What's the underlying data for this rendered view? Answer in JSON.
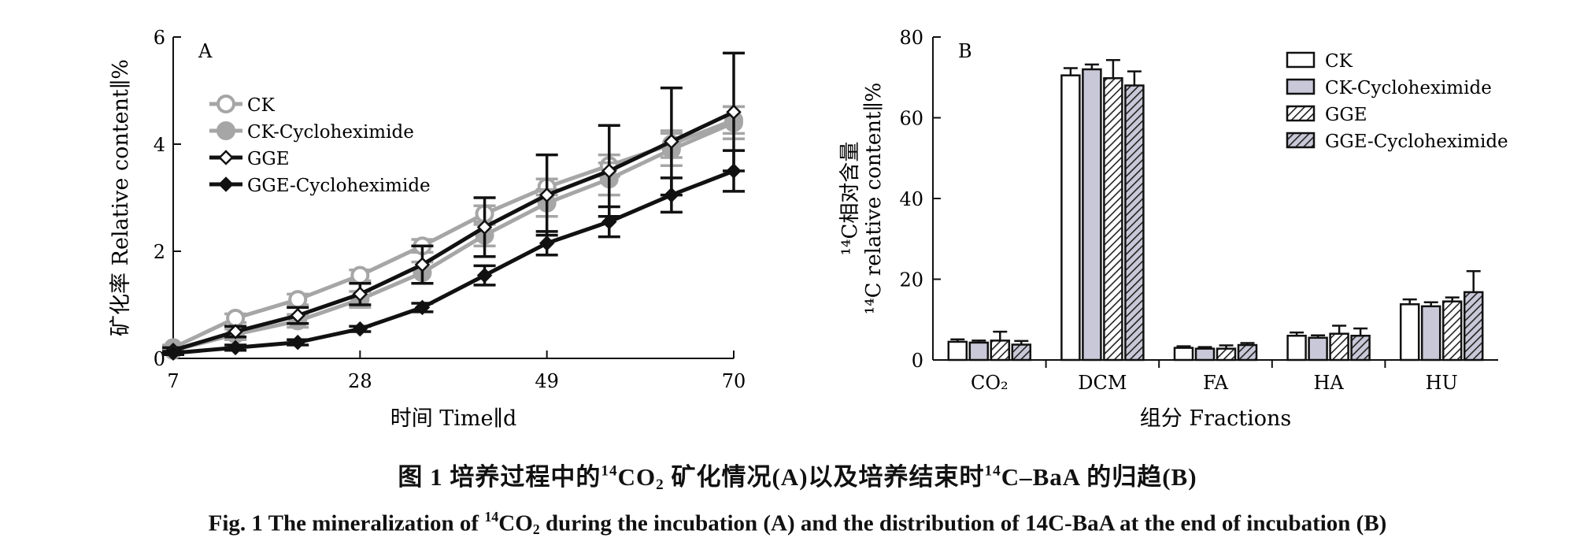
{
  "chart_data": [
    {
      "type": "line",
      "panel_label": "A",
      "xlabel": "时间 Time∥d",
      "ylabel": "矿化率 Relative content∥%",
      "xlim": [
        7,
        70
      ],
      "ylim": [
        0,
        6
      ],
      "xticks": [
        7,
        28,
        49,
        70
      ],
      "yticks": [
        0,
        2,
        4,
        6
      ],
      "grid": false,
      "legend_position": "top-left",
      "x": [
        7,
        14,
        21,
        28,
        35,
        42,
        49,
        56,
        63,
        70
      ],
      "series": [
        {
          "name": "CK",
          "color": "#a6a6a6",
          "marker": "circle-open",
          "values": [
            0.2,
            0.75,
            1.1,
            1.55,
            2.1,
            2.7,
            3.2,
            3.6,
            4.0,
            4.45
          ],
          "errors": [
            0.05,
            0.08,
            0.1,
            0.1,
            0.12,
            0.15,
            0.15,
            0.2,
            0.25,
            0.25
          ]
        },
        {
          "name": "CK-Cycloheximide",
          "color": "#a6a6a6",
          "marker": "circle-filled",
          "values": [
            0.15,
            0.45,
            0.7,
            1.1,
            1.6,
            2.3,
            2.9,
            3.35,
            3.9,
            4.4
          ],
          "errors": [
            0.05,
            0.1,
            0.12,
            0.15,
            0.2,
            0.2,
            0.25,
            0.3,
            0.3,
            0.3
          ]
        },
        {
          "name": "GGE",
          "color": "#111111",
          "marker": "diamond-open",
          "values": [
            0.15,
            0.5,
            0.8,
            1.2,
            1.75,
            2.45,
            3.05,
            3.5,
            4.05,
            4.6
          ],
          "errors": [
            0.05,
            0.1,
            0.15,
            0.2,
            0.35,
            0.55,
            0.75,
            0.85,
            1.0,
            1.1
          ]
        },
        {
          "name": "GGE-Cycloheximide",
          "color": "#111111",
          "marker": "diamond-filled",
          "values": [
            0.1,
            0.2,
            0.3,
            0.55,
            0.95,
            1.55,
            2.15,
            2.55,
            3.05,
            3.5
          ],
          "errors": [
            0.03,
            0.05,
            0.05,
            0.05,
            0.08,
            0.18,
            0.22,
            0.28,
            0.32,
            0.38
          ]
        }
      ]
    },
    {
      "type": "bar",
      "panel_label": "B",
      "xlabel": "组分 Fractions",
      "ylabel_line1": "¹⁴C相对含量",
      "ylabel_line2": "¹⁴C relative content∥%",
      "ylim": [
        0,
        80
      ],
      "yticks": [
        0,
        20,
        40,
        60,
        80
      ],
      "grid": false,
      "legend_position": "top-right",
      "categories": [
        "CO₂",
        "DCM",
        "FA",
        "HA",
        "HU"
      ],
      "series": [
        {
          "name": "CK",
          "fill": "white",
          "values": [
            4.5,
            70.5,
            3.0,
            6.0,
            13.8
          ],
          "errors": [
            0.6,
            1.8,
            0.4,
            0.8,
            1.2
          ]
        },
        {
          "name": "CK-Cycloheximide",
          "fill": "#c8c8d8",
          "values": [
            4.3,
            72.0,
            2.8,
            5.5,
            13.3
          ],
          "errors": [
            0.5,
            1.2,
            0.4,
            0.6,
            1.0
          ]
        },
        {
          "name": "GGE",
          "fill": "hatch-white",
          "values": [
            4.8,
            69.8,
            2.8,
            6.5,
            14.5
          ],
          "errors": [
            2.2,
            4.5,
            0.8,
            2.0,
            1.0
          ]
        },
        {
          "name": "GGE-Cycloheximide",
          "fill": "hatch-grey",
          "values": [
            3.8,
            68.0,
            3.7,
            6.0,
            16.8
          ],
          "errors": [
            0.9,
            3.5,
            0.5,
            1.8,
            5.2
          ]
        }
      ]
    }
  ],
  "caption": {
    "cn_prefix": "图 1   培养过程中的",
    "cn_sup1": "14",
    "cn_co": "CO",
    "cn_sub": "2",
    "cn_middle": " 矿化情况(A)以及培养结束时",
    "cn_sup2": "14",
    "cn_end": "C–BaA 的归趋(B)",
    "en_prefix": "Fig. 1   The mineralization of ",
    "en_sup": "14",
    "en_co": "CO",
    "en_sub": "2",
    "en_end": " during the incubation (A) and the distribution of 14C-BaA at the end of incubation (B)"
  }
}
